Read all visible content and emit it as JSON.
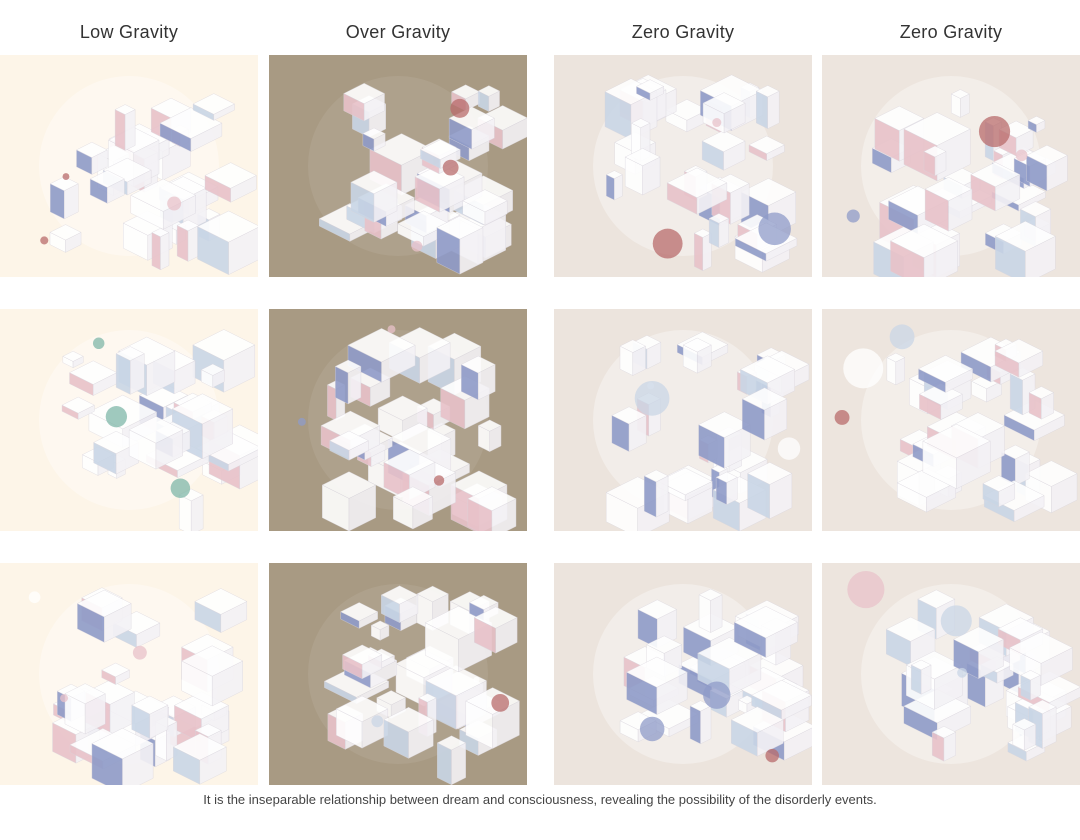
{
  "columns": [
    {
      "title": "Low Gravity",
      "bg": "#fdf5e8"
    },
    {
      "title": "Over Gravity",
      "bg": "#a89a83"
    },
    {
      "title": "Zero Gravity",
      "bg": "#ece4dd"
    },
    {
      "title": "Zero Gravity",
      "bg": "#ede5de"
    }
  ],
  "caption": "It is the inseparable relationship between dream and consciousness, revealing the possibility of the disorderly events.",
  "accent_colors": [
    "#e8c2c9",
    "#8f9bc8",
    "#ffffff",
    "#c9d6e6",
    "#b86b6b",
    "#7fb7a8"
  ]
}
